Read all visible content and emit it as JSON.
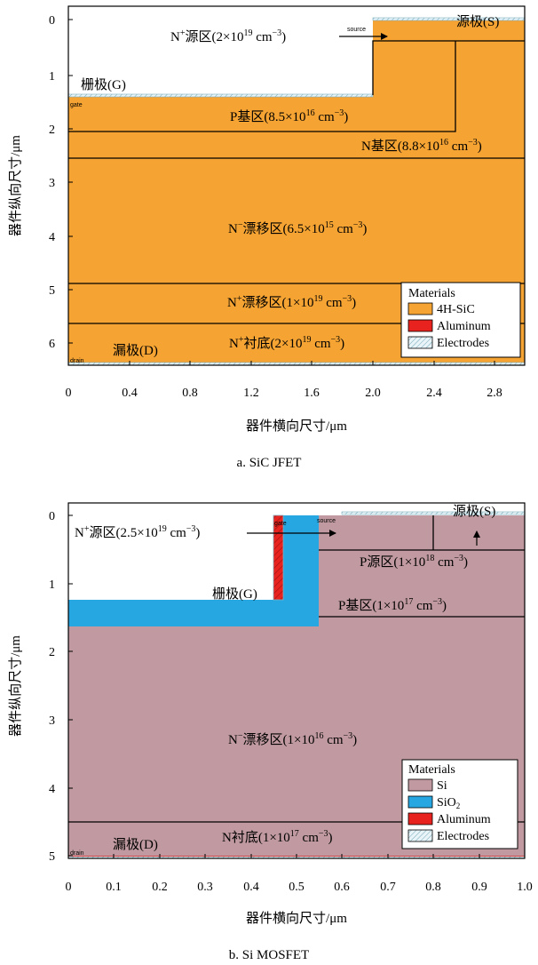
{
  "panel_a": {
    "caption": "a. SiC JFET",
    "xlabel": "器件横向尺寸/μm",
    "ylabel": "器件纵向尺寸/μm",
    "xticks": [
      "0",
      "0.4",
      "0.8",
      "1.2",
      "1.6",
      "2.0",
      "2.4",
      "2.8"
    ],
    "yticks": [
      "0",
      "1",
      "2",
      "3",
      "4",
      "5",
      "6"
    ],
    "labels": {
      "n_source_pre": "N",
      "n_source_sup": "+",
      "n_source_mid": "源区(2×10",
      "n_source_exp": "19",
      "n_source_post": " cm",
      "n_source_unit_exp": "−3",
      "n_source_close": ")",
      "source_small": "source",
      "source_electrode": "源极(S)",
      "gate_electrode": "栅极(G)",
      "gate_small": "gate",
      "p_base_mid": "P基区(8.5×10",
      "p_base_exp": "16",
      "p_base_post": " cm",
      "p_base_unit_exp": "−3",
      "p_base_close": ")",
      "n_base_mid": "N基区(8.8×10",
      "n_base_exp": "16",
      "n_base_post": " cm",
      "n_base_unit_exp": "−3",
      "n_base_close": ")",
      "n_drift_pre": "N",
      "n_drift_sup": "−",
      "n_drift_mid": "漂移区(6.5×10",
      "n_drift_exp": "15",
      "n_drift_post": " cm",
      "n_drift_unit_exp": "−3",
      "n_drift_close": ")",
      "np_drift_pre": "N",
      "np_drift_sup": "+",
      "np_drift_mid": "漂移区(1×10",
      "np_drift_exp": "19",
      "np_drift_post": " cm",
      "np_drift_unit_exp": "−3",
      "np_drift_close": ")",
      "np_sub_pre": "N",
      "np_sub_sup": "+",
      "np_sub_mid": "衬底(2×10",
      "np_sub_exp": "19",
      "np_sub_post": " cm",
      "np_sub_unit_exp": "−3",
      "np_sub_close": ")",
      "drain_electrode": "漏极(D)",
      "drain_small": "drain"
    },
    "legend": {
      "title": "Materials",
      "items": [
        "4H-SiC",
        "Aluminum",
        "Electrodes"
      ]
    },
    "colors": {
      "sic": "#f5a332",
      "aluminum": "#e8231f",
      "electrode": "#cfe6ee"
    }
  },
  "panel_b": {
    "caption": "b. Si MOSFET",
    "xlabel": "器件横向尺寸/μm",
    "ylabel": "器件纵向尺寸/μm",
    "xticks": [
      "0",
      "0.1",
      "0.2",
      "0.3",
      "0.4",
      "0.5",
      "0.6",
      "0.7",
      "0.8",
      "0.9",
      "1.0"
    ],
    "yticks": [
      "0",
      "1",
      "2",
      "3",
      "4",
      "5"
    ],
    "labels": {
      "n_source_pre": "N",
      "n_source_sup": "+",
      "n_source_mid": "源区(2.5×10",
      "n_source_exp": "19",
      "n_source_post": " cm",
      "n_source_unit_exp": "−3",
      "n_source_close": ")",
      "gate_small": "gate",
      "source_small": "source",
      "source_electrode": "源极(S)",
      "p_source_mid": "P源区(1×10",
      "p_source_exp": "18",
      "p_source_post": " cm",
      "p_source_unit_exp": "−3",
      "p_source_close": ")",
      "gate_electrode": "栅极(G)",
      "p_base_mid": "P基区(1×10",
      "p_base_exp": "17",
      "p_base_post": " cm",
      "p_base_unit_exp": "−3",
      "p_base_close": ")",
      "n_drift_pre": "N",
      "n_drift_sup": "−",
      "n_drift_mid": "漂移区(1×10",
      "n_drift_exp": "16",
      "n_drift_post": " cm",
      "n_drift_unit_exp": "−3",
      "n_drift_close": ")",
      "n_sub_mid": "N衬底(1×10",
      "n_sub_exp": "17",
      "n_sub_post": " cm",
      "n_sub_unit_exp": "−3",
      "n_sub_close": ")",
      "drain_electrode": "漏极(D)",
      "drain_small": "drain"
    },
    "legend": {
      "title": "Materials",
      "items": [
        "Si",
        "SiO",
        "Aluminum",
        "Electrodes"
      ],
      "sio2_sub": "2"
    },
    "colors": {
      "si": "#c09aa0",
      "sio2": "#27a7e1",
      "aluminum": "#e8231f",
      "electrode": "#cfe6ee"
    }
  }
}
